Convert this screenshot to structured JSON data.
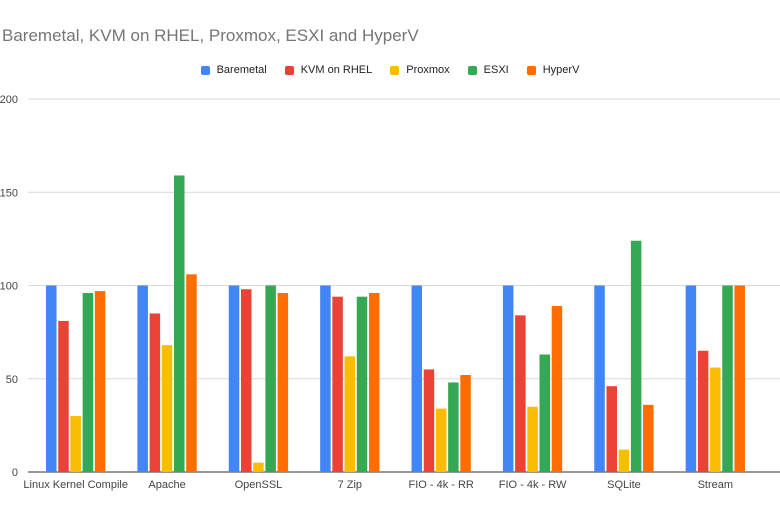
{
  "chart_data": {
    "type": "bar",
    "title": "Baremetal, KVM on RHEL, Proxmox, ESXI and HyperV",
    "xlabel": "",
    "ylabel": "",
    "ylim": [
      0,
      200
    ],
    "yticks": [
      0,
      50,
      100,
      150,
      200
    ],
    "grid": true,
    "legend_position": "top",
    "categories": [
      "Linux Kernel Compile",
      "Apache",
      "OpenSSL",
      "7 Zip",
      "FIO - 4k - RR",
      "FIO - 4k - RW",
      "SQLite",
      "Stream"
    ],
    "series": [
      {
        "name": "Baremetal",
        "color": "#4285f4",
        "values": [
          100,
          100,
          100,
          100,
          100,
          100,
          100,
          100
        ]
      },
      {
        "name": "KVM on RHEL",
        "color": "#ea4335",
        "values": [
          81,
          85,
          98,
          94,
          55,
          84,
          46,
          65
        ]
      },
      {
        "name": "Proxmox",
        "color": "#fbbc04",
        "values": [
          30,
          68,
          5,
          62,
          34,
          35,
          12,
          56
        ]
      },
      {
        "name": "ESXI",
        "color": "#34a853",
        "values": [
          96,
          159,
          100,
          94,
          48,
          63,
          124,
          100
        ]
      },
      {
        "name": "HyperV",
        "color": "#ff6d01",
        "values": [
          97,
          106,
          96,
          96,
          52,
          89,
          36,
          100
        ]
      }
    ]
  }
}
